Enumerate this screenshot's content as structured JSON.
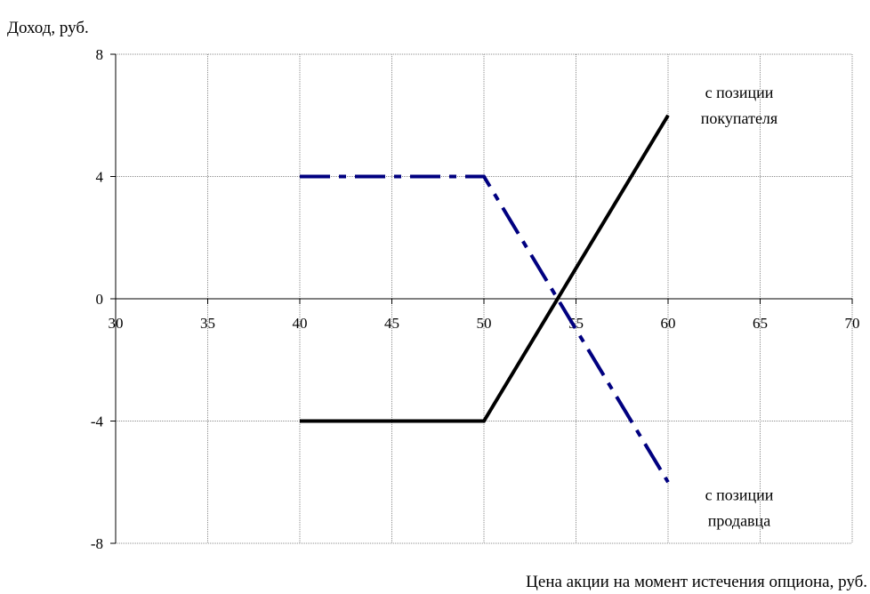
{
  "chart_data": {
    "type": "line",
    "ylabel": "Доход, руб.",
    "xlabel": "Цена акции на момент истечения опциона, руб.",
    "xlim": [
      30,
      70
    ],
    "ylim": [
      -8,
      8
    ],
    "x_ticks": [
      30,
      35,
      40,
      45,
      50,
      55,
      60,
      65,
      70
    ],
    "y_ticks": [
      8,
      4,
      0,
      -4,
      -8
    ],
    "grid": true,
    "series": [
      {
        "name": "с позиции покупателя",
        "style": "solid",
        "color": "#000000",
        "x": [
          40,
          50,
          60
        ],
        "y": [
          -4,
          -4,
          6
        ]
      },
      {
        "name": "с позиции продавца",
        "style": "dash-dot",
        "color": "#000080",
        "x": [
          40,
          50,
          60
        ],
        "y": [
          4,
          4,
          -6
        ]
      }
    ],
    "annotations": [
      {
        "lines": [
          "с позиции",
          "покупателя"
        ],
        "series": 0
      },
      {
        "lines": [
          "с позиции",
          "продавца"
        ],
        "series": 1
      }
    ]
  }
}
